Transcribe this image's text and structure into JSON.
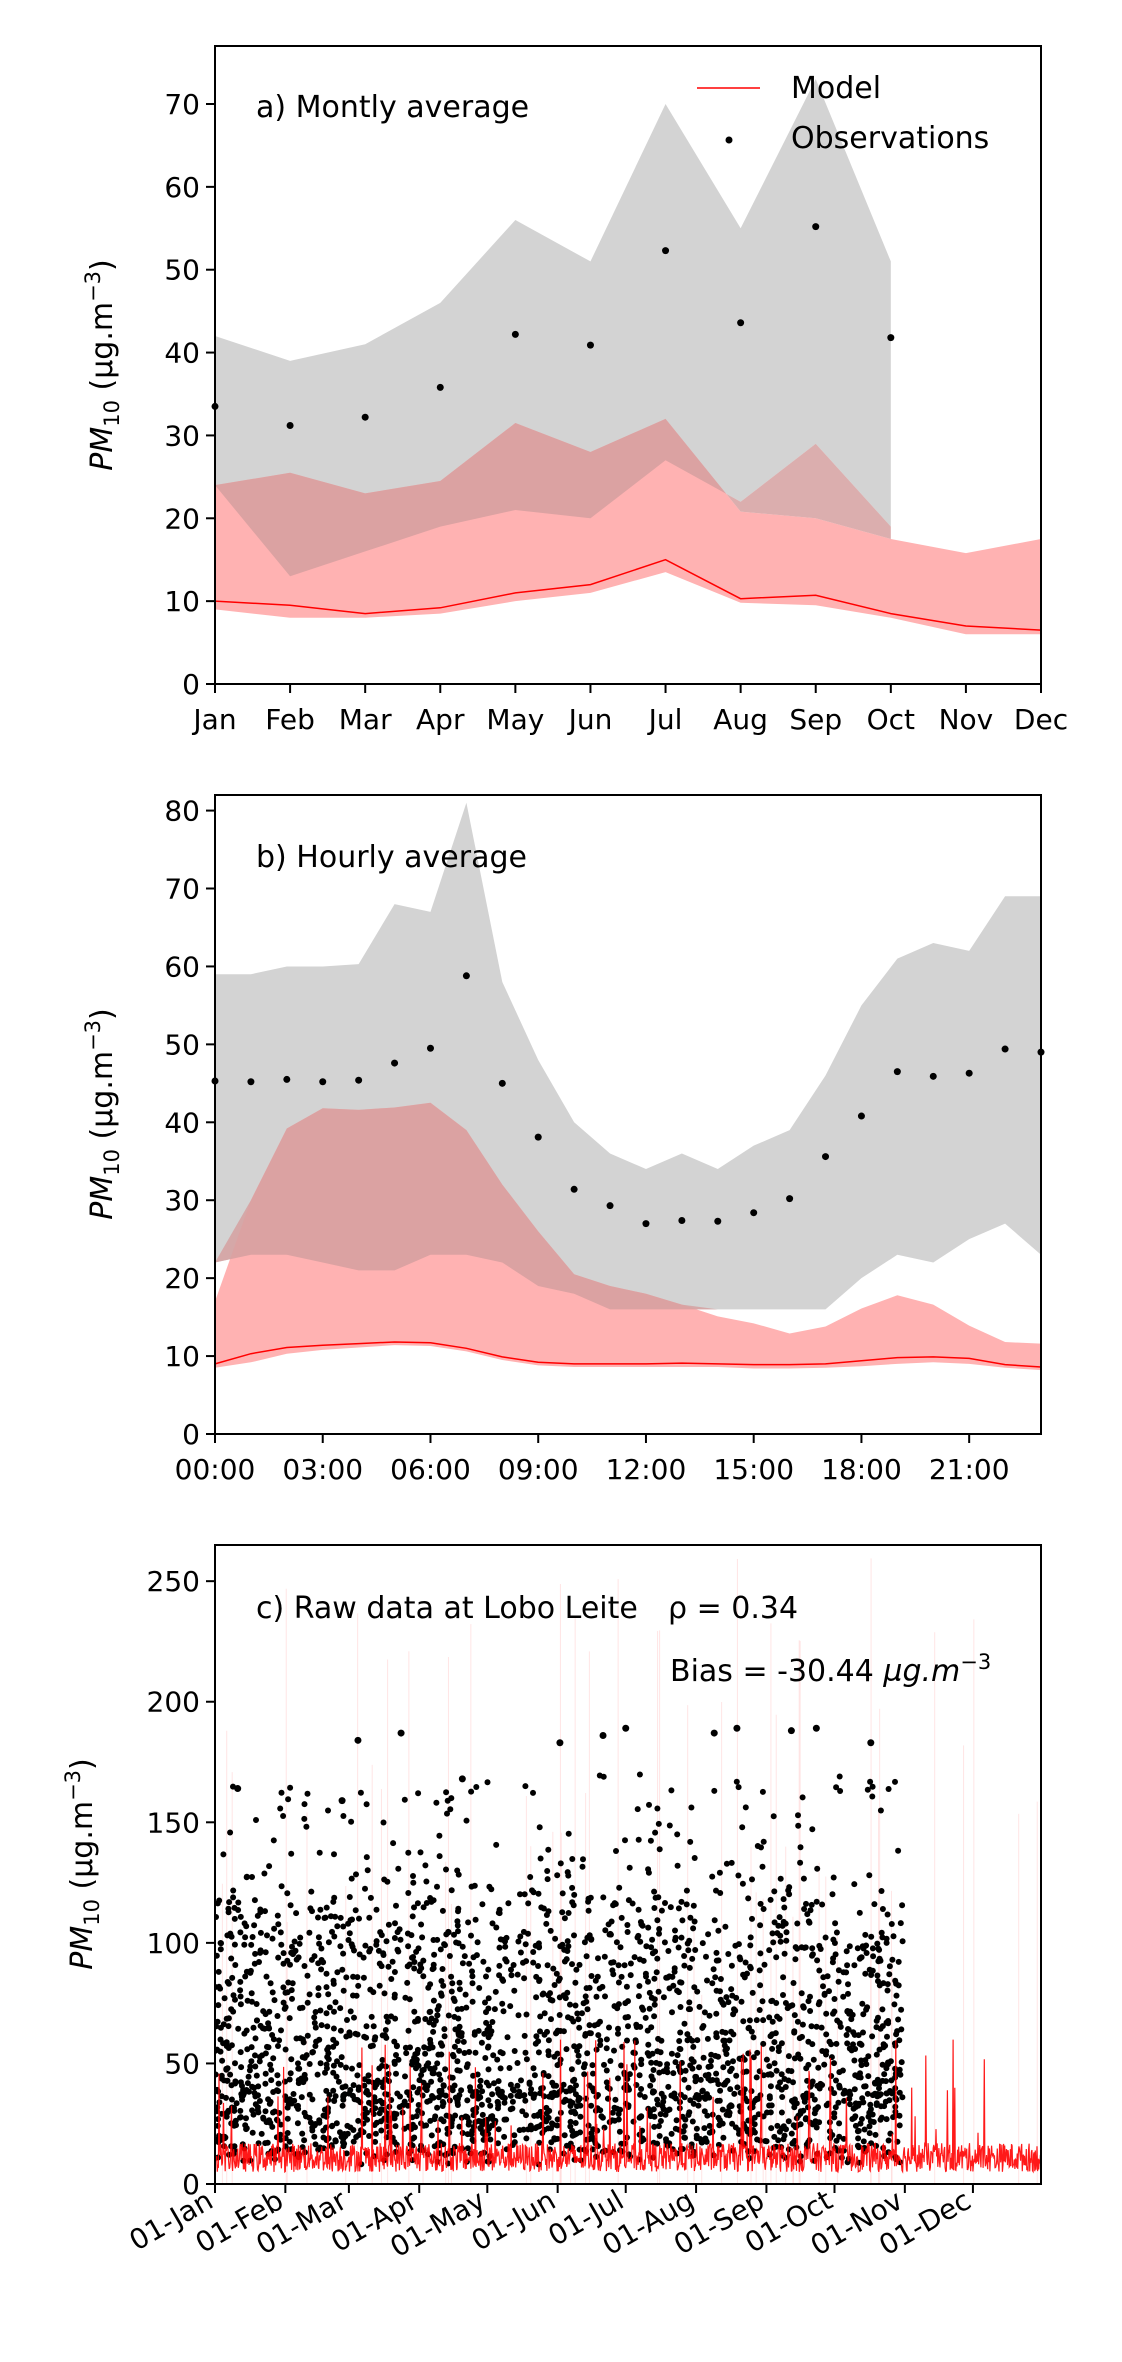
{
  "chart_data": [
    {
      "type": "area",
      "annotation": "a) Montly average",
      "ylabel": "PM10 (µg.m⁻³)",
      "ylabel_parts": {
        "base": "PM",
        "sub": "10",
        "unit": " (µg.m",
        "sup": "−3",
        "close": ")"
      },
      "ylim": [
        0,
        77
      ],
      "yticks": [
        0,
        10,
        20,
        30,
        40,
        50,
        60,
        70
      ],
      "categories": [
        "Jan",
        "Feb",
        "Mar",
        "Apr",
        "May",
        "Jun",
        "Jul",
        "Aug",
        "Sep",
        "Oct",
        "Nov",
        "Dec"
      ],
      "legend": {
        "placement": "top-right",
        "model_label": "Model",
        "obs_label": "Observations"
      },
      "observations": [
        33.5,
        31.2,
        32.2,
        35.8,
        42.2,
        40.9,
        52.3,
        43.6,
        55.2,
        41.8
      ],
      "obs_band_low": [
        24,
        13,
        16,
        19,
        21,
        20,
        27,
        22,
        29,
        19
      ],
      "obs_band_high": [
        42,
        39,
        41,
        46,
        56,
        51,
        70,
        55,
        73,
        51
      ],
      "model": [
        10,
        9.5,
        8.5,
        9.2,
        11,
        12,
        15,
        10.3,
        10.7,
        8.5,
        7,
        6.5
      ],
      "model_band_low": [
        9,
        8,
        8,
        8.5,
        10,
        11,
        13.5,
        9.8,
        9.5,
        8,
        6,
        6
      ],
      "model_band_high": [
        24,
        25.5,
        23,
        24.5,
        31.5,
        28,
        32,
        20.8,
        20,
        17.5,
        15.8,
        17.5
      ],
      "colors": {
        "model_line": "#ff0000",
        "model_band": "#ffaaaa",
        "obs_band": "#d3d3d3",
        "overlap": "#d5a0a0",
        "obs_marker": "#000000"
      }
    },
    {
      "type": "area",
      "annotation": "b) Hourly average",
      "ylabel": "PM10 (µg.m⁻³)",
      "ylabel_parts": {
        "base": "PM",
        "sub": "10",
        "unit": " (µg.m",
        "sup": "−3",
        "close": ")"
      },
      "ylim": [
        0,
        82
      ],
      "yticks": [
        0,
        10,
        20,
        30,
        40,
        50,
        60,
        70,
        80
      ],
      "x": [
        0,
        1,
        2,
        3,
        4,
        5,
        6,
        7,
        8,
        9,
        10,
        11,
        12,
        13,
        14,
        15,
        16,
        17,
        18,
        19,
        20,
        21,
        22,
        23
      ],
      "xlim": [
        0,
        23
      ],
      "xticks": [
        0,
        3,
        6,
        9,
        12,
        15,
        18,
        21
      ],
      "xtick_labels": [
        "00:00",
        "03:00",
        "06:00",
        "09:00",
        "12:00",
        "15:00",
        "18:00",
        "21:00"
      ],
      "observations": [
        45.3,
        45.2,
        45.5,
        45.2,
        45.4,
        47.6,
        49.5,
        58.8,
        45.0,
        38.1,
        31.4,
        29.3,
        27.0,
        27.4,
        27.3,
        28.4,
        30.2,
        35.6,
        40.8,
        46.5,
        45.9,
        46.3,
        49.4,
        49.0
      ],
      "obs_band_low": [
        22,
        23,
        23,
        22,
        21,
        21,
        23,
        23,
        22,
        19,
        18,
        16,
        16,
        16,
        16,
        16,
        16,
        16,
        20,
        23,
        22,
        25,
        27,
        23
      ],
      "obs_band_high": [
        59,
        59,
        60,
        60,
        60.3,
        68,
        67,
        81,
        58,
        48,
        40,
        36,
        34,
        36,
        34,
        37,
        39,
        46,
        55,
        61,
        63,
        62,
        69,
        69
      ],
      "model": [
        9,
        10.3,
        11.1,
        11.4,
        11.6,
        11.8,
        11.7,
        11,
        9.9,
        9.2,
        9.0,
        9.0,
        9.0,
        9.1,
        9.0,
        8.9,
        8.9,
        9.0,
        9.4,
        9.8,
        9.9,
        9.7,
        8.9,
        8.6
      ],
      "model_band_low": [
        8.5,
        9.2,
        10.3,
        10.8,
        11.1,
        11.4,
        11.3,
        10.6,
        9.5,
        8.8,
        8.6,
        8.6,
        8.6,
        8.6,
        8.6,
        8.4,
        8.4,
        8.5,
        8.7,
        9.0,
        9.2,
        9.0,
        8.5,
        8.2
      ],
      "model_band_high": [
        17,
        30,
        39.2,
        41.8,
        41.6,
        41.9,
        42.5,
        39,
        32,
        26,
        20.5,
        19,
        18,
        16.6,
        15.1,
        14.2,
        12.9,
        13.8,
        16.1,
        17.8,
        16.6,
        13.9,
        11.8,
        11.6
      ],
      "colors": {
        "model_line": "#ff0000",
        "model_band": "#ffaaaa",
        "obs_band": "#d3d3d3",
        "overlap": "#d5a0a0",
        "obs_marker": "#000000"
      }
    },
    {
      "type": "scatter",
      "annotation": "c) Raw data at Lobo Leite",
      "stat_rho": "ρ = 0.34",
      "stat_bias_prefix": "Bias = -30.44 ",
      "stat_bias_unit": {
        "unit": "µg.m",
        "sup": "−3"
      },
      "ylabel": "PM10 (µg.m⁻³)",
      "ylabel_parts": {
        "base": "PM",
        "sub": "10",
        "unit": " (µg.m",
        "sup": "−3",
        "close": ")"
      },
      "ylim": [
        0,
        265
      ],
      "yticks": [
        0,
        50,
        100,
        150,
        200,
        250
      ],
      "xlim": [
        "2019-01-01",
        "2019-12-31"
      ],
      "xtick_dates": [
        "2019-01-01",
        "2019-02-01",
        "2019-03-01",
        "2019-04-01",
        "2019-05-01",
        "2019-06-01",
        "2019-07-01",
        "2019-08-01",
        "2019-09-01",
        "2019-10-01",
        "2019-11-01",
        "2019-12-01"
      ],
      "xtick_labels": [
        "01-Jan",
        "01-Feb",
        "01-Mar",
        "01-Apr",
        "01-May",
        "01-Jun",
        "01-Jul",
        "01-Aug",
        "01-Sep",
        "01-Oct",
        "01-Nov",
        "01-Dec"
      ],
      "observation_extent": [
        "2019-01-01",
        "2019-10-31"
      ],
      "observation_notable_points": [
        {
          "date": "2019-01-11",
          "value": 164
        },
        {
          "date": "2019-02-26",
          "value": 159
        },
        {
          "date": "2019-03-05",
          "value": 184
        },
        {
          "date": "2019-03-24",
          "value": 187
        },
        {
          "date": "2019-04-20",
          "value": 168
        },
        {
          "date": "2019-06-02",
          "value": 183
        },
        {
          "date": "2019-06-21",
          "value": 186
        },
        {
          "date": "2019-07-01",
          "value": 189
        },
        {
          "date": "2019-08-09",
          "value": 187
        },
        {
          "date": "2019-08-19",
          "value": 189
        },
        {
          "date": "2019-09-12",
          "value": 188
        },
        {
          "date": "2019-09-23",
          "value": 189
        },
        {
          "date": "2019-10-17",
          "value": 183
        }
      ],
      "colors": {
        "model_line": "#ff0000",
        "obs_marker": "#000000"
      }
    }
  ]
}
